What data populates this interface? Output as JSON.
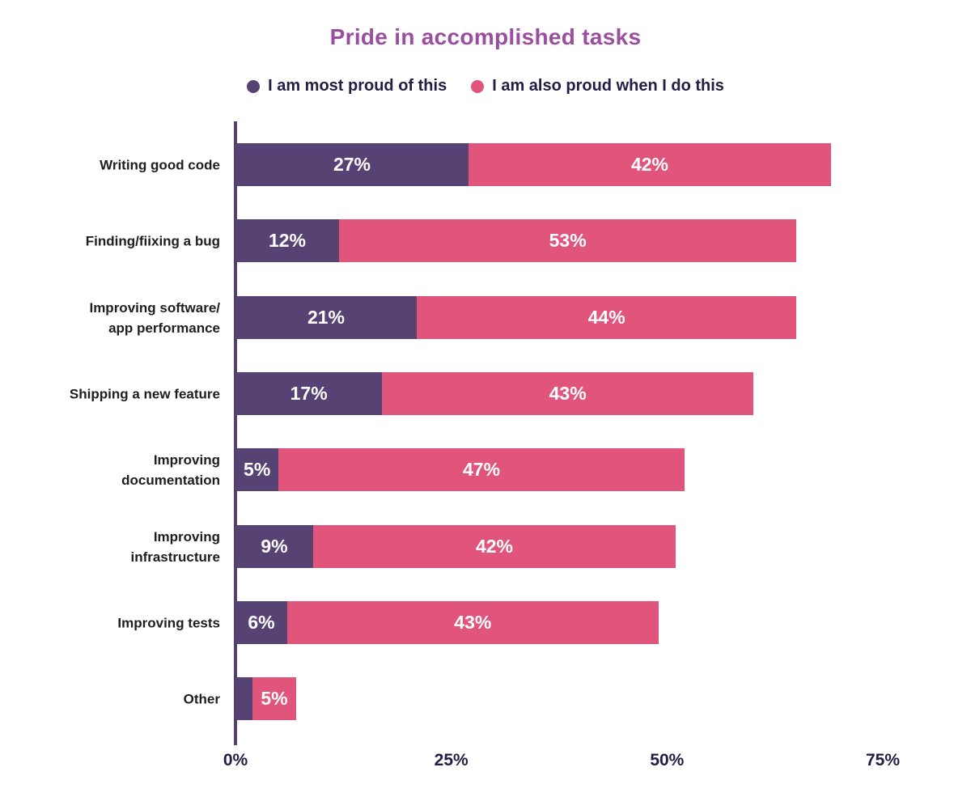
{
  "title": {
    "text": "Pride in accomplished tasks",
    "color": "#9b4ea0"
  },
  "legend": [
    {
      "label": "I am most proud of this",
      "color": "#574373"
    },
    {
      "label": "I am also proud when I do this",
      "color": "#e1557c"
    }
  ],
  "colors": {
    "axis_line": "#53406e",
    "tick_text": "#231d45",
    "legend_text": "#231d45",
    "category_text": "#1e1e1e",
    "bar_value_text": "#ffffff"
  },
  "chart_data": {
    "type": "bar",
    "orientation": "horizontal",
    "stacked": true,
    "title": "Pride in accomplished tasks",
    "grid": false,
    "legend_position": "top",
    "xlim": [
      0,
      75
    ],
    "x_tick_labels": [
      "0%",
      "25%",
      "50%",
      "75%"
    ],
    "x_tick_values": [
      0,
      25,
      50,
      75
    ],
    "categories": [
      [
        "Writing good code"
      ],
      [
        "Finding/fiixing a bug"
      ],
      [
        "Improving software/",
        "app performance"
      ],
      [
        "Shipping a new feature"
      ],
      [
        "Improving",
        "documentation"
      ],
      [
        "Improving",
        "infrastructure"
      ],
      [
        "Improving tests"
      ],
      [
        "Other"
      ]
    ],
    "series": [
      {
        "name": "I am most proud of this",
        "color": "#574373",
        "values": [
          27,
          12,
          21,
          17,
          5,
          9,
          6,
          2
        ],
        "labels": [
          "27%",
          "12%",
          "21%",
          "17%",
          "5%",
          "9%",
          "6%",
          ""
        ]
      },
      {
        "name": "I am also proud when I do this",
        "color": "#e1557c",
        "values": [
          42,
          53,
          44,
          43,
          47,
          42,
          43,
          5
        ],
        "labels": [
          "42%",
          "53%",
          "44%",
          "43%",
          "47%",
          "42%",
          "43%",
          "5%"
        ]
      }
    ]
  }
}
